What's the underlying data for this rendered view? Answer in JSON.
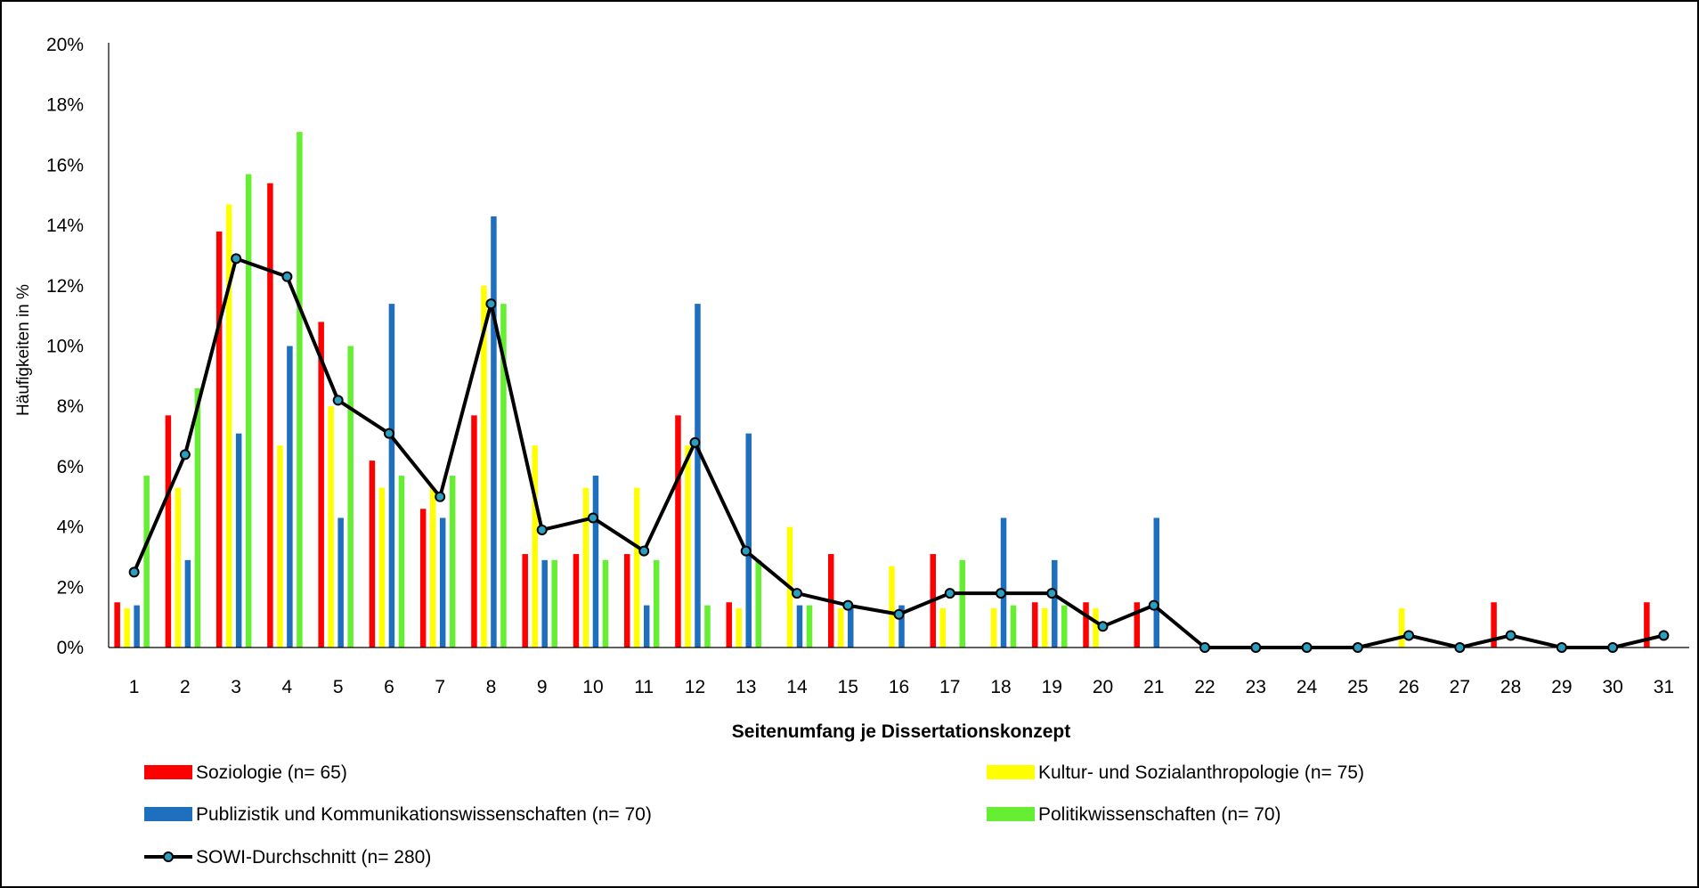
{
  "chart_data": {
    "type": "bar",
    "title": "",
    "xlabel": "Seitenumfang je Dissertationskonzept",
    "ylabel": "Häufigkeiten in %",
    "ylim": [
      0,
      20
    ],
    "yticks": [
      "0%",
      "2%",
      "4%",
      "6%",
      "8%",
      "10%",
      "12%",
      "14%",
      "16%",
      "18%",
      "20%"
    ],
    "grid": false,
    "legend_position": "bottom",
    "categories": [
      "1",
      "2",
      "3",
      "4",
      "5",
      "6",
      "7",
      "8",
      "9",
      "10",
      "11",
      "12",
      "13",
      "14",
      "15",
      "16",
      "17",
      "18",
      "19",
      "20",
      "21",
      "22",
      "23",
      "24",
      "25",
      "26",
      "27",
      "28",
      "29",
      "30",
      "31"
    ],
    "series": [
      {
        "name": "Soziologie (n= 65)",
        "kind": "bar",
        "color": "#ff0000",
        "values": [
          1.5,
          7.7,
          13.8,
          15.4,
          10.8,
          6.2,
          4.6,
          7.7,
          3.1,
          3.1,
          3.1,
          7.7,
          1.5,
          0,
          3.1,
          0,
          3.1,
          0,
          1.5,
          1.5,
          1.5,
          0,
          0,
          0,
          0,
          0,
          0,
          1.5,
          0,
          0,
          1.5
        ]
      },
      {
        "name": "Kultur- und Sozialanthropologie (n= 75)",
        "kind": "bar",
        "color": "#ffff00",
        "values": [
          1.3,
          5.3,
          14.7,
          6.7,
          8.0,
          5.3,
          5.3,
          12.0,
          6.7,
          5.3,
          5.3,
          6.7,
          1.3,
          4.0,
          1.3,
          2.7,
          1.3,
          1.3,
          1.3,
          1.3,
          0,
          0,
          0,
          0,
          0,
          1.3,
          0,
          0,
          0,
          0,
          0
        ]
      },
      {
        "name": "Publizistik und Kommunikationswissenschaften (n= 70)",
        "kind": "bar",
        "color": "#1f6fbf",
        "values": [
          1.4,
          2.9,
          7.1,
          10.0,
          4.3,
          11.4,
          4.3,
          14.3,
          2.9,
          5.7,
          1.4,
          11.4,
          7.1,
          1.4,
          1.4,
          1.4,
          0,
          4.3,
          2.9,
          0,
          4.3,
          0,
          0,
          0,
          0,
          0,
          0,
          0,
          0,
          0,
          0
        ]
      },
      {
        "name": "Politikwissenschaften (n= 70)",
        "kind": "bar",
        "color": "#66ee33",
        "values": [
          5.7,
          8.6,
          15.7,
          17.1,
          10.0,
          5.7,
          5.7,
          11.4,
          2.9,
          2.9,
          2.9,
          1.4,
          2.9,
          1.4,
          0,
          0,
          2.9,
          1.4,
          1.4,
          0,
          0,
          0,
          0,
          0,
          0,
          0,
          0,
          0,
          0,
          0,
          0
        ]
      },
      {
        "name": "SOWI-Durchschnitt (n= 280)",
        "kind": "line",
        "color": "#000000",
        "marker_color": "#2a9fbf",
        "values": [
          2.5,
          6.4,
          12.9,
          12.3,
          8.2,
          7.1,
          5.0,
          11.4,
          3.9,
          4.3,
          3.2,
          6.8,
          3.2,
          1.8,
          1.4,
          1.1,
          1.8,
          1.8,
          1.8,
          0.7,
          1.4,
          0,
          0,
          0,
          0,
          0.4,
          0,
          0.4,
          0,
          0,
          0.4
        ]
      }
    ]
  }
}
